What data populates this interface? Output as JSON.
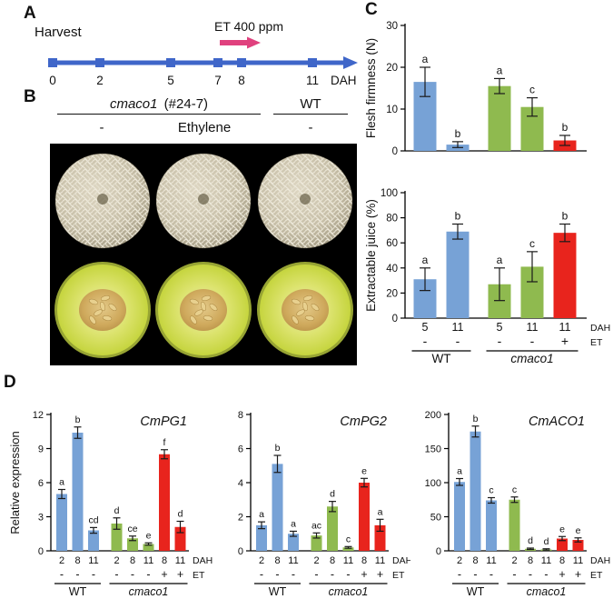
{
  "panel_labels": {
    "a": "A",
    "b": "B",
    "c": "C",
    "d": "D"
  },
  "timeline": {
    "harvest_label": "Harvest",
    "et_label": "ET 400 ppm",
    "dah_label": "DAH",
    "ticks": [
      "0",
      "2",
      "5",
      "7",
      "8",
      "11"
    ]
  },
  "photos": {
    "genotype_left_em": "cmaco1",
    "genotype_left_suffix": "(#24-7)",
    "genotype_right": "WT",
    "treatment_left": "-",
    "treatment_middle": "Ethylene",
    "treatment_right": "-"
  },
  "colors": {
    "wt": "#77a2d6",
    "cmaco1": "#8fba4f",
    "et": "#e8241d",
    "timeline_blue": "#3f66c9",
    "et_arrow_pink": "#e0417e"
  },
  "chart_data": [
    {
      "id": "firmness",
      "type": "bar",
      "title": "",
      "ylabel": "Flesh firmness (N)",
      "ylim": [
        0,
        30
      ],
      "yticks": [
        0,
        10,
        20,
        30
      ],
      "bars": [
        {
          "group": "WT",
          "dah": "5",
          "et": "-",
          "value": 16.5,
          "err": 3.5,
          "letter": "a",
          "color": "wt"
        },
        {
          "group": "WT",
          "dah": "11",
          "et": "-",
          "value": 1.5,
          "err": 0.7,
          "letter": "b",
          "color": "wt"
        },
        {
          "group": "cmaco1",
          "dah": "5",
          "et": "-",
          "value": 15.5,
          "err": 1.8,
          "letter": "a",
          "color": "cmaco1"
        },
        {
          "group": "cmaco1",
          "dah": "11",
          "et": "-",
          "value": 10.5,
          "err": 2.2,
          "letter": "c",
          "color": "cmaco1"
        },
        {
          "group": "cmaco1",
          "dah": "11",
          "et": "+",
          "value": 2.5,
          "err": 1.2,
          "letter": "b",
          "color": "et"
        }
      ],
      "groups": [
        {
          "label": "WT",
          "italic": false,
          "from": 0,
          "to": 1
        },
        {
          "label": "cmaco1",
          "italic": true,
          "from": 2,
          "to": 4
        }
      ],
      "show_rows": false,
      "trailing": {
        "dah": "",
        "et": ""
      }
    },
    {
      "id": "juice",
      "type": "bar",
      "title": "",
      "ylabel": "Extractable juice (%)",
      "ylim": [
        0,
        100
      ],
      "yticks": [
        0,
        20,
        40,
        60,
        80,
        100
      ],
      "bars": [
        {
          "group": "WT",
          "dah": "5",
          "et": "-",
          "value": 31,
          "err": 9,
          "letter": "a",
          "color": "wt"
        },
        {
          "group": "WT",
          "dah": "11",
          "et": "-",
          "value": 69,
          "err": 6,
          "letter": "b",
          "color": "wt"
        },
        {
          "group": "cmaco1",
          "dah": "5",
          "et": "-",
          "value": 27,
          "err": 13,
          "letter": "a",
          "color": "cmaco1"
        },
        {
          "group": "cmaco1",
          "dah": "11",
          "et": "-",
          "value": 41,
          "err": 12,
          "letter": "c",
          "color": "cmaco1"
        },
        {
          "group": "cmaco1",
          "dah": "11",
          "et": "+",
          "value": 68,
          "err": 7,
          "letter": "b",
          "color": "et"
        }
      ],
      "groups": [
        {
          "label": "WT",
          "italic": false,
          "from": 0,
          "to": 1
        },
        {
          "label": "cmaco1",
          "italic": true,
          "from": 2,
          "to": 4
        }
      ],
      "show_rows": true,
      "trailing": {
        "dah": "DAH",
        "et": "ET"
      }
    },
    {
      "id": "pg1",
      "type": "bar",
      "title": "CmPG1",
      "ylabel": "Relative expression",
      "ylim": [
        0,
        12
      ],
      "yticks": [
        0,
        3,
        6,
        9,
        12
      ],
      "bars": [
        {
          "group": "WT",
          "dah": "2",
          "et": "-",
          "value": 5.0,
          "err": 0.4,
          "letter": "a",
          "color": "wt"
        },
        {
          "group": "WT",
          "dah": "8",
          "et": "-",
          "value": 10.4,
          "err": 0.5,
          "letter": "b",
          "color": "wt"
        },
        {
          "group": "WT",
          "dah": "11",
          "et": "-",
          "value": 1.8,
          "err": 0.25,
          "letter": "cd",
          "color": "wt"
        },
        {
          "group": "cmaco1",
          "dah": "2",
          "et": "-",
          "value": 2.4,
          "err": 0.5,
          "letter": "d",
          "color": "cmaco1"
        },
        {
          "group": "cmaco1",
          "dah": "8",
          "et": "-",
          "value": 1.1,
          "err": 0.2,
          "letter": "ce",
          "color": "cmaco1"
        },
        {
          "group": "cmaco1",
          "dah": "11",
          "et": "-",
          "value": 0.6,
          "err": 0.1,
          "letter": "e",
          "color": "cmaco1"
        },
        {
          "group": "cmaco1",
          "dah": "8",
          "et": "+",
          "value": 8.5,
          "err": 0.4,
          "letter": "f",
          "color": "et"
        },
        {
          "group": "cmaco1",
          "dah": "11",
          "et": "+",
          "value": 2.1,
          "err": 0.5,
          "letter": "d",
          "color": "et"
        }
      ],
      "groups": [
        {
          "label": "WT",
          "italic": false,
          "from": 0,
          "to": 2
        },
        {
          "label": "cmaco1",
          "italic": true,
          "from": 3,
          "to": 7
        }
      ],
      "show_rows": true,
      "trailing": {
        "dah": "DAH",
        "et": "ET"
      }
    },
    {
      "id": "pg2",
      "type": "bar",
      "title": "CmPG2",
      "ylabel": "",
      "ylim": [
        0,
        8
      ],
      "yticks": [
        0,
        2,
        4,
        6,
        8
      ],
      "bars": [
        {
          "group": "WT",
          "dah": "2",
          "et": "-",
          "value": 1.5,
          "err": 0.2,
          "letter": "a",
          "color": "wt"
        },
        {
          "group": "WT",
          "dah": "8",
          "et": "-",
          "value": 5.1,
          "err": 0.5,
          "letter": "b",
          "color": "wt"
        },
        {
          "group": "WT",
          "dah": "11",
          "et": "-",
          "value": 1.0,
          "err": 0.15,
          "letter": "a",
          "color": "wt"
        },
        {
          "group": "cmaco1",
          "dah": "2",
          "et": "-",
          "value": 0.9,
          "err": 0.15,
          "letter": "ac",
          "color": "cmaco1"
        },
        {
          "group": "cmaco1",
          "dah": "8",
          "et": "-",
          "value": 2.6,
          "err": 0.3,
          "letter": "d",
          "color": "cmaco1"
        },
        {
          "group": "cmaco1",
          "dah": "11",
          "et": "-",
          "value": 0.2,
          "err": 0.05,
          "letter": "c",
          "color": "cmaco1"
        },
        {
          "group": "cmaco1",
          "dah": "8",
          "et": "+",
          "value": 4.0,
          "err": 0.25,
          "letter": "e",
          "color": "et"
        },
        {
          "group": "cmaco1",
          "dah": "11",
          "et": "+",
          "value": 1.5,
          "err": 0.35,
          "letter": "a",
          "color": "et"
        }
      ],
      "groups": [
        {
          "label": "WT",
          "italic": false,
          "from": 0,
          "to": 2
        },
        {
          "label": "cmaco1",
          "italic": true,
          "from": 3,
          "to": 7
        }
      ],
      "show_rows": true,
      "trailing": {
        "dah": "DAH",
        "et": "ET"
      }
    },
    {
      "id": "aco1",
      "type": "bar",
      "title": "CmACO1",
      "ylabel": "",
      "ylim": [
        0,
        200
      ],
      "yticks": [
        0,
        50,
        100,
        150,
        200
      ],
      "bars": [
        {
          "group": "WT",
          "dah": "2",
          "et": "-",
          "value": 101,
          "err": 5,
          "letter": "a",
          "color": "wt"
        },
        {
          "group": "WT",
          "dah": "8",
          "et": "-",
          "value": 175,
          "err": 8,
          "letter": "b",
          "color": "wt"
        },
        {
          "group": "WT",
          "dah": "11",
          "et": "-",
          "value": 74,
          "err": 4,
          "letter": "c",
          "color": "wt"
        },
        {
          "group": "cmaco1",
          "dah": "2",
          "et": "-",
          "value": 75,
          "err": 4,
          "letter": "c",
          "color": "cmaco1"
        },
        {
          "group": "cmaco1",
          "dah": "8",
          "et": "-",
          "value": 3,
          "err": 1,
          "letter": "d",
          "color": "cmaco1"
        },
        {
          "group": "cmaco1",
          "dah": "11",
          "et": "-",
          "value": 2,
          "err": 1,
          "letter": "d",
          "color": "cmaco1"
        },
        {
          "group": "cmaco1",
          "dah": "8",
          "et": "+",
          "value": 18,
          "err": 3,
          "letter": "e",
          "color": "et"
        },
        {
          "group": "cmaco1",
          "dah": "11",
          "et": "+",
          "value": 16,
          "err": 3,
          "letter": "e",
          "color": "et"
        }
      ],
      "groups": [
        {
          "label": "WT",
          "italic": false,
          "from": 0,
          "to": 2
        },
        {
          "label": "cmaco1",
          "italic": true,
          "from": 3,
          "to": 7
        }
      ],
      "show_rows": true,
      "trailing": {
        "dah": "DAH",
        "et": "ET"
      }
    }
  ]
}
